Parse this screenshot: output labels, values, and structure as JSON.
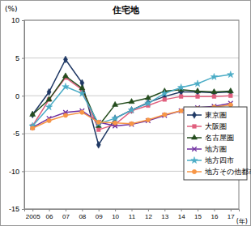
{
  "chart_data": {
    "type": "line",
    "title": "住宅地",
    "y_label": "(%)",
    "x_label": "(年)",
    "categories": [
      "2005",
      "06",
      "07",
      "08",
      "09",
      "10",
      "11",
      "12",
      "13",
      "14",
      "15",
      "16",
      "17"
    ],
    "ylim": [
      -15,
      10
    ],
    "yticks": [
      -15,
      -10,
      -5,
      0,
      5,
      10
    ],
    "grid": true,
    "legend": "lower right",
    "series": [
      {
        "name": "東京圏",
        "color": "#1f3864",
        "marker": "diamond",
        "values": [
          -2.5,
          0.5,
          4.8,
          1.7,
          -6.5,
          -3.0,
          -1.9,
          -0.9,
          -0.1,
          0.5,
          0.5,
          0.4,
          0.5
        ]
      },
      {
        "name": "大阪圏",
        "color": "#e0607e",
        "marker": "square",
        "values": [
          -4.0,
          -0.5,
          2.4,
          0.8,
          -4.5,
          -3.8,
          -2.0,
          -1.3,
          -0.5,
          -0.1,
          -0.1,
          -0.1,
          0.0
        ]
      },
      {
        "name": "名古屋圏",
        "color": "#254d1e",
        "marker": "triangle",
        "values": [
          -2.5,
          -0.5,
          2.6,
          1.0,
          -4.0,
          -1.2,
          -0.8,
          -0.3,
          0.6,
          0.8,
          0.6,
          0.5,
          0.6
        ]
      },
      {
        "name": "地方圏",
        "color": "#7030a0",
        "marker": "x",
        "values": [
          -4.2,
          -3.0,
          -2.2,
          -2.0,
          -3.5,
          -4.0,
          -3.8,
          -3.3,
          -2.6,
          -2.0,
          -1.6,
          -1.4,
          -1.0
        ]
      },
      {
        "name": "地方四市",
        "color": "#4bacc6",
        "marker": "star",
        "values": [
          -4.0,
          -1.5,
          1.2,
          0.3,
          -3.7,
          -3.0,
          -1.9,
          -1.0,
          0.3,
          1.1,
          1.6,
          2.5,
          2.8
        ]
      },
      {
        "name": "地方その他都市",
        "color": "#f79646",
        "marker": "circle",
        "values": [
          -4.3,
          -3.3,
          -2.6,
          -2.2,
          -3.5,
          -3.6,
          -3.7,
          -3.2,
          -2.5,
          -2.0,
          -1.7,
          -1.5,
          -1.2
        ]
      }
    ]
  }
}
